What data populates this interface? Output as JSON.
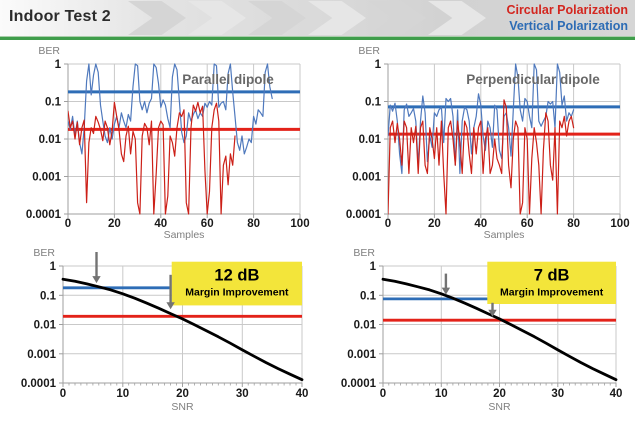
{
  "header": {
    "title": "Indoor Test 2",
    "legend": [
      {
        "label": "Circular Polarization",
        "color": "#d3261f"
      },
      {
        "label": "Vertical Polarization",
        "color": "#2d6cb5"
      }
    ]
  },
  "colors": {
    "divider_green": "#3f9d4b",
    "divider_green_light": "#a9cfaa",
    "grid": "#c9c9c9",
    "axis": "#9f9f9f",
    "tick_label": "#1a1a1a",
    "axis_label": "#7f7f7f",
    "chart_title": "#686868",
    "arrow": "#737373",
    "annotation_yellow": "#f3e53a",
    "chevron_dark": "#d5d5d5",
    "chevron_light": "#e6e6e6"
  },
  "chart_data": [
    {
      "id": "parallel-dipole",
      "type": "line",
      "title": "Parallel dipole",
      "xlabel": "Samples",
      "ylabel": "BER",
      "xlim": [
        0,
        100
      ],
      "x_ticks": [
        0,
        20,
        40,
        60,
        80,
        100
      ],
      "y_scale": "log",
      "ylim": [
        0.0001,
        1
      ],
      "y_ticks": [
        {
          "v": 1,
          "label": "1"
        },
        {
          "v": 0.1,
          "label": "0.1"
        },
        {
          "v": 0.01,
          "label": "0.01"
        },
        {
          "v": 0.001,
          "label": "0.001"
        },
        {
          "v": 0.0001,
          "label": "0.0001"
        }
      ],
      "grid": true,
      "series": [
        {
          "name": "Vertical Polarization",
          "color": "#4f79bd",
          "width": 1.2,
          "x_start": 0,
          "x_step": 1,
          "values": [
            0.03,
            0.018,
            0.04,
            0.012,
            0.03,
            0.008,
            0.004,
            0.02,
            0.35,
            1,
            0.15,
            0.5,
            1,
            0.6,
            0.08,
            0.03,
            0.012,
            0.008,
            0.02,
            0.01,
            0.025,
            0.04,
            0.02,
            0.05,
            0.03,
            0.02,
            0.045,
            0.03,
            0.25,
            1,
            0.9,
            0.1,
            0.06,
            0.1,
            0.05,
            0.09,
            0.12,
            1,
            0.8,
            0.3,
            0.07,
            0.11,
            0.08,
            0.035,
            0.02,
            0.45,
            1,
            0.7,
            0.1,
            0.015,
            0.008,
            0.012,
            0.05,
            0.03,
            0.045,
            0.06,
            0.035,
            0.05,
            0.04,
            0.09,
            0.07,
            0.1,
            0.08,
            1,
            0.9,
            0.07,
            0.09,
            0.1,
            0.06,
            0.55,
            1,
            0.18,
            0.04,
            0.008,
            0.005,
            0.012,
            0.004,
            0.006,
            0.01,
            0.008,
            0.04,
            0.025,
            0.06,
            0.05,
            0.04,
            0.6,
            1,
            0.25,
            0.12
          ]
        },
        {
          "name": "Circular Polarization",
          "color": "#cc2018",
          "width": 1.2,
          "x_start": 0,
          "x_step": 1,
          "values": [
            0.055,
            0.02,
            0.03,
            0.01,
            0.028,
            0.007,
            0.02,
            0.032,
            0.0002,
            0.008,
            0.02,
            0.014,
            0.04,
            0.028,
            0.018,
            0.009,
            0.03,
            0.02,
            0.007,
            0.016,
            0.095,
            0.04,
            0.018,
            0.004,
            0.0025,
            0.012,
            0.022,
            0.004,
            0.016,
            0.01,
            0.0002,
            0.0001,
            0.012,
            0.026,
            0.02,
            0.007,
            0.03,
            0.0001,
            0.0012,
            0.02,
            0.03,
            0.024,
            0.0001,
            0.0003,
            0.012,
            0.008,
            0.0035,
            0.02,
            0.05,
            0.04,
            0.06,
            0.0002,
            0.0001,
            0.02,
            0.08,
            0.055,
            0.095,
            0.05,
            0.075,
            0.0015,
            0.0001,
            0.0004,
            0.02,
            0.06,
            0.09,
            0.03,
            0.0001,
            0.002,
            0.0035,
            0.0006,
            0.004,
            0.002,
            0.012
          ]
        }
      ],
      "hlines": [
        {
          "name": "Vertical Polarization average",
          "y": 0.18,
          "color": "#2e6db6",
          "width": 3,
          "x_from": 0,
          "x_to": 100
        },
        {
          "name": "Circular Polarization average",
          "y": 0.018,
          "color": "#e32219",
          "width": 3,
          "x_from": 0,
          "x_to": 100
        }
      ]
    },
    {
      "id": "perpendicular-dipole",
      "type": "line",
      "title": "Perpendicular dipole",
      "xlabel": "Samples",
      "ylabel": "BER",
      "xlim": [
        0,
        100
      ],
      "x_ticks": [
        0,
        20,
        40,
        60,
        80,
        100
      ],
      "y_scale": "log",
      "ylim": [
        0.0001,
        1
      ],
      "y_ticks": [
        {
          "v": 1,
          "label": "1"
        },
        {
          "v": 0.1,
          "label": "0.1"
        },
        {
          "v": 0.01,
          "label": "0.01"
        },
        {
          "v": 0.001,
          "label": "0.001"
        },
        {
          "v": 0.0001,
          "label": "0.0001"
        }
      ],
      "grid": true,
      "series": [
        {
          "name": "Vertical Polarization",
          "color": "#4f79bd",
          "width": 1.2,
          "x_start": 0,
          "x_step": 1,
          "values": [
            0.012,
            0.08,
            0.055,
            0.09,
            0.03,
            0.004,
            0.0012,
            0.06,
            0.085,
            0.04,
            0.05,
            0.065,
            0.03,
            0.002,
            0.03,
            0.14,
            0.05,
            0.0025,
            0.012,
            0.006,
            0.05,
            0.04,
            0.06,
            0.07,
            0.008,
            0.12,
            0.1,
            0.12,
            0.04,
            0.002,
            0.06,
            0.0012,
            0.03,
            0.07,
            0.06,
            0.03,
            0.004,
            0.02,
            0.04,
            0.16,
            0.08,
            0.012,
            0.005,
            0.03,
            0.02,
            0.006,
            0.08,
            0.06,
            0.005,
            0.003,
            0.04,
            0.05,
            0.02,
            0.0035,
            0.06,
            1,
            0.45,
            0.06,
            0.03,
            0.12,
            0.1,
            0.04,
            0.02,
            1,
            0.7,
            0.03,
            0.022,
            0.03,
            0.04,
            0.1,
            0.085,
            0.1,
            0.02,
            1,
            0.6,
            0.08,
            0.14,
            0.03,
            0.05,
            0.04,
            0.06
          ]
        },
        {
          "name": "Circular Polarization",
          "color": "#cc2018",
          "width": 1.2,
          "x_start": 0,
          "x_step": 1,
          "values": [
            0.0001,
            0.02,
            0.03,
            0.008,
            0.026,
            0.01,
            0.002,
            0.03,
            0.02,
            0.0012,
            0.02,
            0.008,
            0.022,
            0.0012,
            0.02,
            0.03,
            0.002,
            0.0012,
            0.02,
            0.01,
            0.003,
            0.02,
            0.002,
            0.03,
            0.0012,
            0.0001,
            0.02,
            0.03,
            0.01,
            0.002,
            0.03,
            0.008,
            0.0012,
            0.03,
            0.02,
            0.004,
            0.0012,
            0.02,
            0.004,
            0.02,
            0.03,
            0.0012,
            0.01,
            0.02,
            0.0012,
            0.002,
            0.01,
            0.003,
            0.002,
            0.0012,
            0.11,
            0.07,
            0.002,
            0.0005,
            0.01,
            0.03,
            0.02,
            0.0001,
            0.0002,
            0.02,
            0.01,
            0.0001,
            0.003,
            0.02,
            0.008,
            0.002,
            0.0001,
            0.005,
            0.05,
            0.03,
            0.002,
            0.0008,
            0.02,
            0.0001,
            0.03,
            0.02,
            0.04,
            0.012,
            0.03,
            0.04,
            0.02
          ]
        }
      ],
      "hlines": [
        {
          "name": "Vertical Polarization average",
          "y": 0.072,
          "color": "#2e6db6",
          "width": 3,
          "x_from": 0,
          "x_to": 100
        },
        {
          "name": "Circular Polarization average",
          "y": 0.0135,
          "color": "#e32219",
          "width": 3,
          "x_from": 0,
          "x_to": 100
        }
      ]
    },
    {
      "id": "snr-margin-parallel",
      "type": "line",
      "title": "",
      "xlabel": "SNR",
      "ylabel": "BER",
      "xlim": [
        0,
        40
      ],
      "x_ticks": [
        0,
        10,
        20,
        30,
        40
      ],
      "x_minor_step": 1,
      "y_scale": "log",
      "ylim": [
        0.0001,
        1
      ],
      "y_ticks": [
        {
          "v": 1,
          "label": "1"
        },
        {
          "v": 0.1,
          "label": "0.1"
        },
        {
          "v": 0.01,
          "label": "0.01"
        },
        {
          "v": 0.001,
          "label": "0.001"
        },
        {
          "v": 0.0001,
          "label": "0.0001"
        }
      ],
      "grid": true,
      "series": [
        {
          "name": "BER vs SNR curve",
          "color": "#000000",
          "width": 2.8,
          "points": [
            [
              0,
              0.355
            ],
            [
              2,
              0.3
            ],
            [
              4,
              0.245
            ],
            [
              6,
              0.195
            ],
            [
              8,
              0.152
            ],
            [
              10,
              0.112
            ],
            [
              12,
              0.079
            ],
            [
              14,
              0.054
            ],
            [
              16,
              0.036
            ],
            [
              18,
              0.0235
            ],
            [
              20,
              0.0155
            ],
            [
              22,
              0.0098
            ],
            [
              24,
              0.0061
            ],
            [
              26,
              0.0038
            ],
            [
              28,
              0.0023
            ],
            [
              30,
              0.00135
            ],
            [
              32,
              0.00082
            ],
            [
              34,
              0.0005
            ],
            [
              36,
              0.00031
            ],
            [
              38,
              0.0002
            ],
            [
              40,
              0.00013
            ]
          ]
        }
      ],
      "hlines": [
        {
          "name": "Vertical Polarization level",
          "y": 0.18,
          "color": "#2e6db6",
          "width": 2.8,
          "x_from": 0,
          "x_to": 18
        },
        {
          "name": "Circular Polarization level",
          "y": 0.019,
          "color": "#e32219",
          "width": 2.8,
          "x_from": 0,
          "x_to": 40
        }
      ],
      "arrows": [
        {
          "x": 5.6,
          "y_from": 3,
          "y_to": 0.26
        },
        {
          "x": 18,
          "y_from": 0.5,
          "y_to": 0.033
        }
      ],
      "annotation": {
        "label": "12 dB",
        "sublabel": "Margin Improvement",
        "fill": "#f3e53a",
        "x_from": 18.2,
        "x_to": 40,
        "y_top": 1.4,
        "y_bottom": 0.045
      }
    },
    {
      "id": "snr-margin-perpendicular",
      "type": "line",
      "title": "",
      "xlabel": "SNR",
      "ylabel": "BER",
      "xlim": [
        0,
        40
      ],
      "x_ticks": [
        0,
        10,
        20,
        30,
        40
      ],
      "x_minor_step": 1,
      "y_scale": "log",
      "ylim": [
        0.0001,
        1
      ],
      "y_ticks": [
        {
          "v": 1,
          "label": "1"
        },
        {
          "v": 0.1,
          "label": "0.1"
        },
        {
          "v": 0.01,
          "label": "0.01"
        },
        {
          "v": 0.001,
          "label": "0.001"
        },
        {
          "v": 0.0001,
          "label": "0.0001"
        }
      ],
      "grid": true,
      "series": [
        {
          "name": "BER vs SNR curve",
          "color": "#000000",
          "width": 2.8,
          "points": [
            [
              0,
              0.355
            ],
            [
              2,
              0.3
            ],
            [
              4,
              0.245
            ],
            [
              6,
              0.195
            ],
            [
              8,
              0.152
            ],
            [
              10,
              0.112
            ],
            [
              12,
              0.079
            ],
            [
              14,
              0.054
            ],
            [
              16,
              0.036
            ],
            [
              18,
              0.0235
            ],
            [
              20,
              0.0155
            ],
            [
              22,
              0.0098
            ],
            [
              24,
              0.0061
            ],
            [
              26,
              0.0038
            ],
            [
              28,
              0.0023
            ],
            [
              30,
              0.00135
            ],
            [
              32,
              0.00082
            ],
            [
              34,
              0.0005
            ],
            [
              36,
              0.00031
            ],
            [
              38,
              0.0002
            ],
            [
              40,
              0.00013
            ]
          ]
        }
      ],
      "hlines": [
        {
          "name": "Vertical Polarization level",
          "y": 0.075,
          "color": "#2e6db6",
          "width": 2.8,
          "x_from": 0,
          "x_to": 18
        },
        {
          "name": "Circular Polarization level",
          "y": 0.014,
          "color": "#e32219",
          "width": 2.8,
          "x_from": 0,
          "x_to": 40
        }
      ],
      "arrows": [
        {
          "x": 10.8,
          "y_from": 0.55,
          "y_to": 0.105
        },
        {
          "x": 18.8,
          "y_from": 0.055,
          "y_to": 0.0185
        }
      ],
      "annotation": {
        "label": "7 dB",
        "sublabel": "Margin Improvement",
        "fill": "#f3e53a",
        "x_from": 17.9,
        "x_to": 40,
        "y_top": 1.4,
        "y_bottom": 0.05
      }
    }
  ]
}
